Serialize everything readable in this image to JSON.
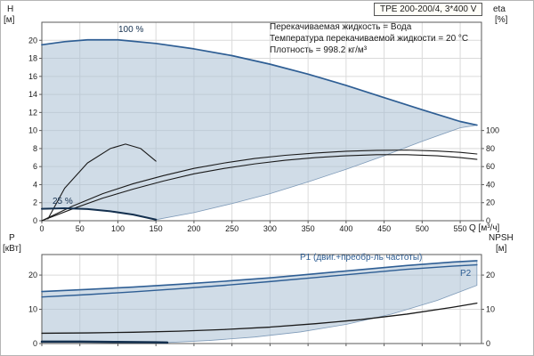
{
  "title_box": "TPE 200-200/4, 3*400 V",
  "conditions": [
    "Перекачиваемая жидкость = Вода",
    "Температура перекачиваемой жидкости = 20 °C",
    "Плотность = 998.2 кг/м³"
  ],
  "labels": {
    "h": "H",
    "h_unit": "[м]",
    "eta": "eta",
    "eta_unit": "[%]",
    "p": "P",
    "p_unit": "[кВт]",
    "npsh": "NPSH",
    "npsh_unit": "[м]",
    "q": "Q [м³/ч]",
    "speed_100": "100 %",
    "speed_25": "25 %",
    "p1": "P1 (двиг.+преобр-ль частоты)",
    "p2": "P2"
  },
  "colors": {
    "curve_blue": "#2e5e94",
    "dark_navy": "#14304f",
    "black": "#1a1a1a",
    "area_fill": "#aabfd4",
    "area_edge": "#7e9ab8",
    "grid": "#dadada",
    "axis": "#5a5a5a",
    "text": "#1a1a1a"
  },
  "chart_data": [
    {
      "type": "line",
      "title": "H-Q and efficiency curves",
      "xlabel": "Q [м³/ч]",
      "ylabel_left": "H [м]",
      "ylabel_right": "eta [%]",
      "xlim": [
        0,
        578
      ],
      "ylim_left": [
        0,
        22
      ],
      "ylim_right": [
        0,
        220
      ],
      "show_x_labels": true,
      "x_ticks": [
        0,
        50,
        100,
        150,
        200,
        250,
        300,
        350,
        400,
        450,
        500,
        550
      ],
      "y_ticks_left": [
        0,
        2,
        4,
        6,
        8,
        10,
        12,
        14,
        16,
        18,
        20
      ],
      "y_ticks_right": [
        0,
        20,
        40,
        60,
        80,
        100
      ],
      "series": [
        {
          "name": "operating-envelope",
          "type": "area",
          "axis": "left",
          "color": "area_fill",
          "opacity": 0.55,
          "points": [
            [
              0,
              1.32
            ],
            [
              30,
              1.38
            ],
            [
              60,
              1.3
            ],
            [
              90,
              1.05
            ],
            [
              120,
              0.68
            ],
            [
              150,
              0.12
            ],
            [
              200,
              0.9
            ],
            [
              250,
              1.9
            ],
            [
              300,
              3.0
            ],
            [
              350,
              4.3
            ],
            [
              400,
              5.7
            ],
            [
              450,
              7.2
            ],
            [
              500,
              8.8
            ],
            [
              550,
              10.3
            ],
            [
              572,
              10.6
            ],
            [
              550,
              11.0
            ],
            [
              500,
              12.3
            ],
            [
              450,
              13.65
            ],
            [
              400,
              15.0
            ],
            [
              350,
              16.25
            ],
            [
              300,
              17.35
            ],
            [
              250,
              18.3
            ],
            [
              200,
              19.05
            ],
            [
              150,
              19.65
            ],
            [
              100,
              20.05
            ],
            [
              60,
              20.05
            ],
            [
              30,
              19.85
            ],
            [
              0,
              19.5
            ]
          ]
        },
        {
          "name": "eta-curve-25",
          "type": "line",
          "axis": "right",
          "color": "black",
          "width": 1.1,
          "points": [
            [
              8,
              2
            ],
            [
              30,
              36
            ],
            [
              60,
              64
            ],
            [
              90,
              80
            ],
            [
              110,
              85
            ],
            [
              130,
              80
            ],
            [
              150,
              66
            ]
          ]
        },
        {
          "name": "eta-curve-total",
          "type": "line",
          "axis": "right",
          "color": "black",
          "width": 1.1,
          "points": [
            [
              0,
              0
            ],
            [
              40,
              13
            ],
            [
              80,
              25
            ],
            [
              120,
              35
            ],
            [
              160,
              44
            ],
            [
              200,
              52
            ],
            [
              240,
              58
            ],
            [
              280,
              63
            ],
            [
              320,
              67
            ],
            [
              360,
              70
            ],
            [
              400,
              72
            ],
            [
              440,
              73.2
            ],
            [
              480,
              73.2
            ],
            [
              520,
              72
            ],
            [
              550,
              70
            ],
            [
              572,
              68
            ]
          ]
        },
        {
          "name": "eta-curve-pump",
          "type": "line",
          "axis": "right",
          "color": "black",
          "width": 1.1,
          "points": [
            [
              0,
              0
            ],
            [
              40,
              16
            ],
            [
              80,
              30
            ],
            [
              120,
              41
            ],
            [
              160,
              50
            ],
            [
              200,
              58
            ],
            [
              240,
              64
            ],
            [
              280,
              69
            ],
            [
              320,
              72.5
            ],
            [
              360,
              75
            ],
            [
              400,
              77
            ],
            [
              440,
              78
            ],
            [
              480,
              78.3
            ],
            [
              520,
              77.3
            ],
            [
              550,
              75.8
            ],
            [
              572,
              74
            ]
          ]
        },
        {
          "name": "head-curve-100",
          "type": "line",
          "axis": "left",
          "color": "curve_blue",
          "width": 1.7,
          "points": [
            [
              0,
              19.5
            ],
            [
              30,
              19.85
            ],
            [
              60,
              20.05
            ],
            [
              100,
              20.05
            ],
            [
              150,
              19.65
            ],
            [
              200,
              19.05
            ],
            [
              250,
              18.3
            ],
            [
              300,
              17.35
            ],
            [
              350,
              16.25
            ],
            [
              400,
              15.0
            ],
            [
              450,
              13.65
            ],
            [
              500,
              12.3
            ],
            [
              550,
              11.0
            ],
            [
              572,
              10.6
            ]
          ]
        },
        {
          "name": "head-curve-25",
          "type": "line",
          "axis": "left",
          "color": "dark_navy",
          "width": 2,
          "points": [
            [
              0,
              1.32
            ],
            [
              30,
              1.38
            ],
            [
              60,
              1.3
            ],
            [
              90,
              1.05
            ],
            [
              120,
              0.68
            ],
            [
              150,
              0.12
            ]
          ]
        }
      ]
    },
    {
      "type": "line",
      "title": "Power and NPSH curves",
      "xlabel": "Q [м³/ч]",
      "ylabel_left": "P [кВт]",
      "ylabel_right": "NPSH [м]",
      "xlim": [
        0,
        578
      ],
      "ylim_left": [
        0,
        26
      ],
      "ylim_right": [
        0,
        26
      ],
      "show_x_labels": false,
      "x_ticks": [
        0,
        50,
        100,
        150,
        200,
        250,
        300,
        350,
        400,
        450,
        500,
        550
      ],
      "y_ticks_left": [
        0,
        10,
        20
      ],
      "y_ticks_right": [
        0,
        10,
        20
      ],
      "series": [
        {
          "name": "power-envelope",
          "type": "area",
          "axis": "left",
          "color": "area_fill",
          "opacity": 0.55,
          "points": [
            [
              0,
              0.55
            ],
            [
              50,
              0.55
            ],
            [
              100,
              0.45
            ],
            [
              150,
              0.35
            ],
            [
              165,
              0.3
            ],
            [
              220,
              0.9
            ],
            [
              280,
              1.9
            ],
            [
              340,
              3.4
            ],
            [
              400,
              5.6
            ],
            [
              460,
              8.6
            ],
            [
              520,
              12.6
            ],
            [
              572,
              17.0
            ],
            [
              572,
              24.2
            ],
            [
              540,
              23.8
            ],
            [
              480,
              22.8
            ],
            [
              420,
              21.6
            ],
            [
              360,
              20.4
            ],
            [
              300,
              19.2
            ],
            [
              240,
              18.2
            ],
            [
              180,
              17.3
            ],
            [
              120,
              16.5
            ],
            [
              60,
              15.8
            ],
            [
              0,
              15.2
            ]
          ]
        },
        {
          "name": "npsh-curve",
          "type": "line",
          "axis": "right",
          "color": "black",
          "width": 1.3,
          "points": [
            [
              0,
              3.0
            ],
            [
              60,
              3.1
            ],
            [
              120,
              3.3
            ],
            [
              180,
              3.6
            ],
            [
              240,
              4.1
            ],
            [
              300,
              4.8
            ],
            [
              360,
              5.8
            ],
            [
              420,
              7.0
            ],
            [
              480,
              8.6
            ],
            [
              540,
              10.6
            ],
            [
              572,
              11.8
            ]
          ]
        },
        {
          "name": "p1-curve",
          "type": "line",
          "axis": "left",
          "color": "curve_blue",
          "width": 1.6,
          "points": [
            [
              0,
              15.2
            ],
            [
              60,
              15.8
            ],
            [
              120,
              16.5
            ],
            [
              180,
              17.3
            ],
            [
              240,
              18.2
            ],
            [
              300,
              19.2
            ],
            [
              360,
              20.4
            ],
            [
              420,
              21.6
            ],
            [
              480,
              22.8
            ],
            [
              540,
              23.8
            ],
            [
              572,
              24.2
            ]
          ]
        },
        {
          "name": "p2-curve",
          "type": "line",
          "axis": "left",
          "color": "curve_blue",
          "width": 1.4,
          "points": [
            [
              0,
              13.6
            ],
            [
              60,
              14.3
            ],
            [
              120,
              15.1
            ],
            [
              180,
              16.0
            ],
            [
              240,
              17.0
            ],
            [
              300,
              18.1
            ],
            [
              360,
              19.3
            ],
            [
              420,
              20.5
            ],
            [
              480,
              21.7
            ],
            [
              540,
              22.6
            ],
            [
              572,
              23.0
            ]
          ]
        },
        {
          "name": "p-curve-25",
          "type": "line",
          "axis": "left",
          "color": "dark_navy",
          "width": 2.5,
          "points": [
            [
              0,
              0.55
            ],
            [
              50,
              0.55
            ],
            [
              100,
              0.45
            ],
            [
              150,
              0.35
            ],
            [
              165,
              0.3
            ]
          ]
        }
      ]
    }
  ]
}
